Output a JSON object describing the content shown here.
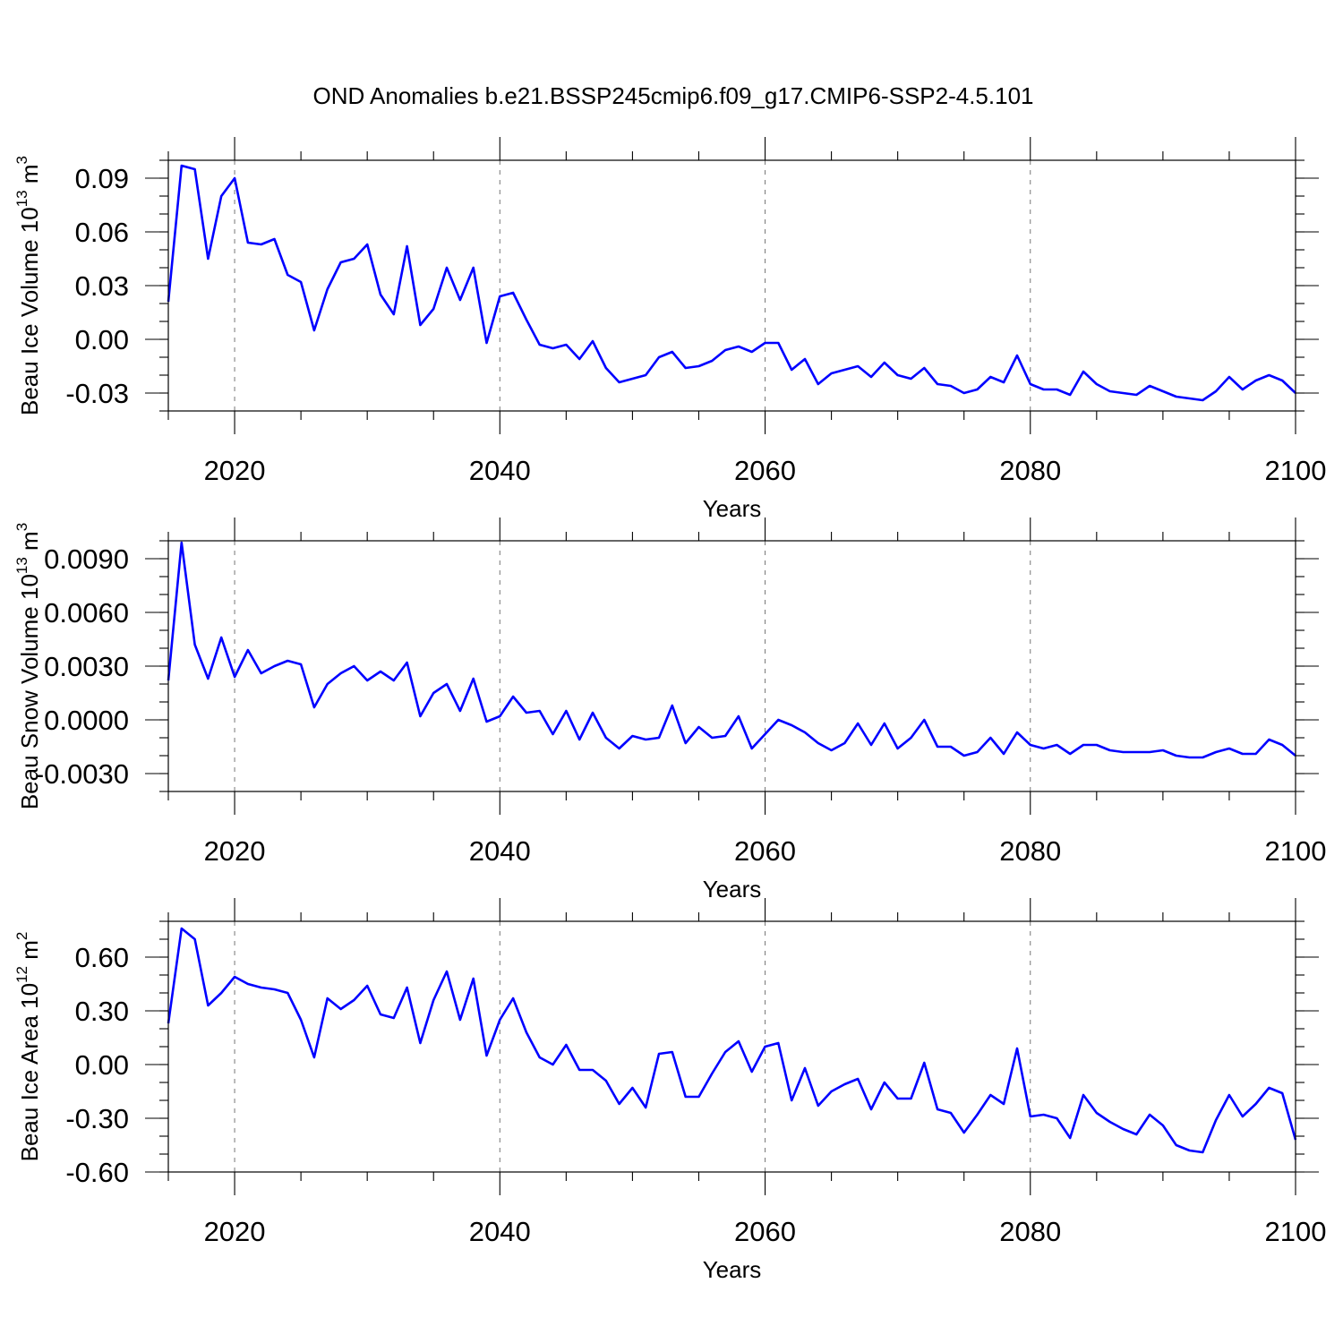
{
  "title": "OND Anomalies b.e21.BSSP245cmip6.f09_g17.CMIP6-SSP2-4.5.101",
  "colors": {
    "series": "#0000ff",
    "grid": "#777777",
    "frame": "#000000"
  },
  "chart_data": [
    {
      "type": "line",
      "xlabel": "Years",
      "ylabel": "Beau Ice Volume 10",
      "ylabel_exponent": "13",
      "ylabel_unit": " m",
      "ylabel_unit_exponent": "3",
      "xlim": [
        2015,
        2100
      ],
      "ylim": [
        -0.04,
        0.1
      ],
      "x_ticks": [
        "2020",
        "2040",
        "2060",
        "2080",
        "2100"
      ],
      "y_ticks": [
        "0.09",
        "0.06",
        "0.03",
        "0.00",
        "-0.03"
      ],
      "grid": "x dashed",
      "series": [
        {
          "x": [
            2015,
            2016,
            2017,
            2018,
            2019,
            2020,
            2021,
            2022,
            2023,
            2024,
            2025,
            2026,
            2027,
            2028,
            2029,
            2030,
            2031,
            2032,
            2033,
            2034,
            2035,
            2036,
            2037,
            2038,
            2039,
            2040,
            2041,
            2042,
            2043,
            2044,
            2045,
            2046,
            2047,
            2048,
            2049,
            2050,
            2051,
            2052,
            2053,
            2054,
            2055,
            2056,
            2057,
            2058,
            2059,
            2060,
            2061,
            2062,
            2063,
            2064,
            2065,
            2066,
            2067,
            2068,
            2069,
            2070,
            2071,
            2072,
            2073,
            2074,
            2075,
            2076,
            2077,
            2078,
            2079,
            2080,
            2081,
            2082,
            2083,
            2084,
            2085,
            2086,
            2087,
            2088,
            2089,
            2090,
            2091,
            2092,
            2093,
            2094,
            2095,
            2096,
            2097,
            2098,
            2099,
            2100
          ],
          "values": [
            0.021,
            0.097,
            0.095,
            0.045,
            0.08,
            0.09,
            0.054,
            0.053,
            0.056,
            0.036,
            0.032,
            0.005,
            0.028,
            0.043,
            0.045,
            0.053,
            0.025,
            0.014,
            0.052,
            0.008,
            0.017,
            0.04,
            0.022,
            0.04,
            -0.002,
            0.024,
            0.026,
            0.011,
            -0.003,
            -0.005,
            -0.003,
            -0.011,
            -0.001,
            -0.016,
            -0.024,
            -0.022,
            -0.02,
            -0.01,
            -0.007,
            -0.016,
            -0.015,
            -0.012,
            -0.006,
            -0.004,
            -0.007,
            -0.002,
            -0.002,
            -0.017,
            -0.011,
            -0.025,
            -0.019,
            -0.017,
            -0.015,
            -0.021,
            -0.013,
            -0.02,
            -0.022,
            -0.016,
            -0.025,
            -0.026,
            -0.03,
            -0.028,
            -0.021,
            -0.024,
            -0.009,
            -0.025,
            -0.028,
            -0.028,
            -0.031,
            -0.018,
            -0.025,
            -0.029,
            -0.03,
            -0.031,
            -0.026,
            -0.029,
            -0.032,
            -0.033,
            -0.034,
            -0.029,
            -0.021,
            -0.028,
            -0.023,
            -0.02,
            -0.023,
            -0.03
          ]
        }
      ]
    },
    {
      "type": "line",
      "xlabel": "Years",
      "ylabel": "Beau Snow Volume 10",
      "ylabel_exponent": "13",
      "ylabel_unit": " m",
      "ylabel_unit_exponent": "3",
      "xlim": [
        2015,
        2100
      ],
      "ylim": [
        -0.004,
        0.01
      ],
      "x_ticks": [
        "2020",
        "2040",
        "2060",
        "2080",
        "2100"
      ],
      "y_ticks": [
        "0.0090",
        "0.0060",
        "0.0030",
        "0.0000",
        "-0.0030"
      ],
      "grid": "x dashed",
      "series": [
        {
          "x": [
            2015,
            2016,
            2017,
            2018,
            2019,
            2020,
            2021,
            2022,
            2023,
            2024,
            2025,
            2026,
            2027,
            2028,
            2029,
            2030,
            2031,
            2032,
            2033,
            2034,
            2035,
            2036,
            2037,
            2038,
            2039,
            2040,
            2041,
            2042,
            2043,
            2044,
            2045,
            2046,
            2047,
            2048,
            2049,
            2050,
            2051,
            2052,
            2053,
            2054,
            2055,
            2056,
            2057,
            2058,
            2059,
            2060,
            2061,
            2062,
            2063,
            2064,
            2065,
            2066,
            2067,
            2068,
            2069,
            2070,
            2071,
            2072,
            2073,
            2074,
            2075,
            2076,
            2077,
            2078,
            2079,
            2080,
            2081,
            2082,
            2083,
            2084,
            2085,
            2086,
            2087,
            2088,
            2089,
            2090,
            2091,
            2092,
            2093,
            2094,
            2095,
            2096,
            2097,
            2098,
            2099,
            2100
          ],
          "values": [
            0.0022,
            0.0099,
            0.0042,
            0.0023,
            0.0046,
            0.0024,
            0.0039,
            0.0026,
            0.003,
            0.0033,
            0.0031,
            0.0007,
            0.002,
            0.0026,
            0.003,
            0.0022,
            0.0027,
            0.0022,
            0.0032,
            0.0002,
            0.0015,
            0.002,
            0.0005,
            0.0023,
            -0.0001,
            0.0002,
            0.0013,
            0.0004,
            0.0005,
            -0.0008,
            0.0005,
            -0.0011,
            0.0004,
            -0.001,
            -0.0016,
            -0.0009,
            -0.0011,
            -0.001,
            0.0008,
            -0.0013,
            -0.0004,
            -0.001,
            -0.0009,
            0.0002,
            -0.0016,
            -0.0008,
            0.0,
            -0.0003,
            -0.0007,
            -0.0013,
            -0.0017,
            -0.0013,
            -0.0002,
            -0.0014,
            -0.0002,
            -0.0016,
            -0.001,
            0.0,
            -0.0015,
            -0.0015,
            -0.002,
            -0.0018,
            -0.001,
            -0.0019,
            -0.0007,
            -0.0014,
            -0.0016,
            -0.0014,
            -0.0019,
            -0.0014,
            -0.0014,
            -0.0017,
            -0.0018,
            -0.0018,
            -0.0018,
            -0.0017,
            -0.002,
            -0.0021,
            -0.0021,
            -0.0018,
            -0.0016,
            -0.0019,
            -0.0019,
            -0.0011,
            -0.0014,
            -0.002
          ]
        }
      ]
    },
    {
      "type": "line",
      "xlabel": "Years",
      "ylabel": "Beau Ice Area 10",
      "ylabel_exponent": "12",
      "ylabel_unit": " m",
      "ylabel_unit_exponent": "2",
      "xlim": [
        2015,
        2100
      ],
      "ylim": [
        -0.6,
        0.8
      ],
      "x_ticks": [
        "2020",
        "2040",
        "2060",
        "2080",
        "2100"
      ],
      "y_ticks": [
        "0.60",
        "0.30",
        "0.00",
        "-0.30",
        "-0.60"
      ],
      "grid": "x dashed",
      "series": [
        {
          "x": [
            2015,
            2016,
            2017,
            2018,
            2019,
            2020,
            2021,
            2022,
            2023,
            2024,
            2025,
            2026,
            2027,
            2028,
            2029,
            2030,
            2031,
            2032,
            2033,
            2034,
            2035,
            2036,
            2037,
            2038,
            2039,
            2040,
            2041,
            2042,
            2043,
            2044,
            2045,
            2046,
            2047,
            2048,
            2049,
            2050,
            2051,
            2052,
            2053,
            2054,
            2055,
            2056,
            2057,
            2058,
            2059,
            2060,
            2061,
            2062,
            2063,
            2064,
            2065,
            2066,
            2067,
            2068,
            2069,
            2070,
            2071,
            2072,
            2073,
            2074,
            2075,
            2076,
            2077,
            2078,
            2079,
            2080,
            2081,
            2082,
            2083,
            2084,
            2085,
            2086,
            2087,
            2088,
            2089,
            2090,
            2091,
            2092,
            2093,
            2094,
            2095,
            2096,
            2097,
            2098,
            2099,
            2100
          ],
          "values": [
            0.23,
            0.76,
            0.7,
            0.33,
            0.4,
            0.49,
            0.45,
            0.43,
            0.42,
            0.4,
            0.25,
            0.04,
            0.37,
            0.31,
            0.36,
            0.44,
            0.28,
            0.26,
            0.43,
            0.12,
            0.36,
            0.52,
            0.25,
            0.48,
            0.05,
            0.25,
            0.37,
            0.18,
            0.04,
            0.0,
            0.11,
            -0.03,
            -0.03,
            -0.09,
            -0.22,
            -0.13,
            -0.24,
            0.06,
            0.07,
            -0.18,
            -0.18,
            -0.05,
            0.07,
            0.13,
            -0.04,
            0.1,
            0.12,
            -0.2,
            -0.02,
            -0.23,
            -0.15,
            -0.11,
            -0.08,
            -0.25,
            -0.1,
            -0.19,
            -0.19,
            0.01,
            -0.25,
            -0.27,
            -0.38,
            -0.28,
            -0.17,
            -0.22,
            0.09,
            -0.29,
            -0.28,
            -0.3,
            -0.41,
            -0.17,
            -0.27,
            -0.32,
            -0.36,
            -0.39,
            -0.28,
            -0.34,
            -0.45,
            -0.48,
            -0.49,
            -0.31,
            -0.17,
            -0.29,
            -0.22,
            -0.13,
            -0.16,
            -0.42
          ]
        }
      ]
    }
  ]
}
